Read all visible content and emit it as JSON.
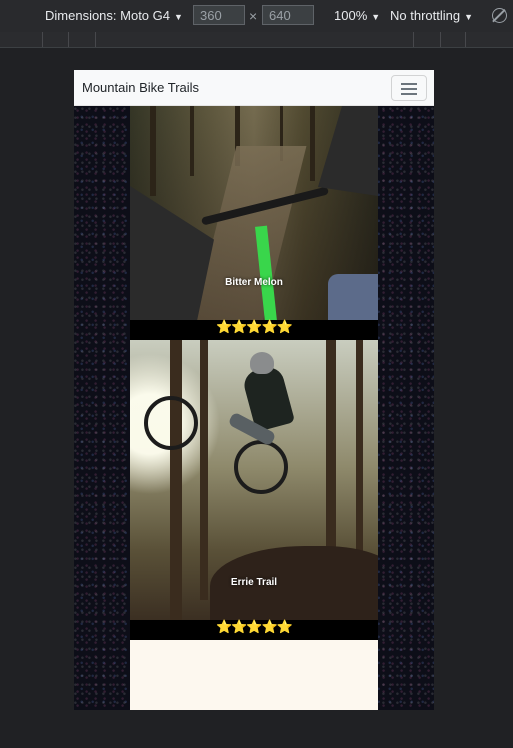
{
  "devtools": {
    "dimensions_label": "Dimensions: Moto G4",
    "width_value": "360",
    "height_value": "640",
    "times_sign": "×",
    "zoom_label": "100%",
    "throttle_label": "No throttling",
    "caret": "▼"
  },
  "navbar": {
    "brand": "Mountain Bike Trails"
  },
  "cards": [
    {
      "title": "Bitter Melon",
      "rating_stars": "⭐⭐⭐⭐⭐"
    },
    {
      "title": "Errie Trail",
      "rating_stars": "⭐⭐⭐⭐⭐"
    }
  ],
  "colors": {
    "navbar_bg": "#f8f9fa",
    "page_bg": "#fdf8ef",
    "devtools_bg": "#292a2d",
    "star": "#f5c518"
  }
}
